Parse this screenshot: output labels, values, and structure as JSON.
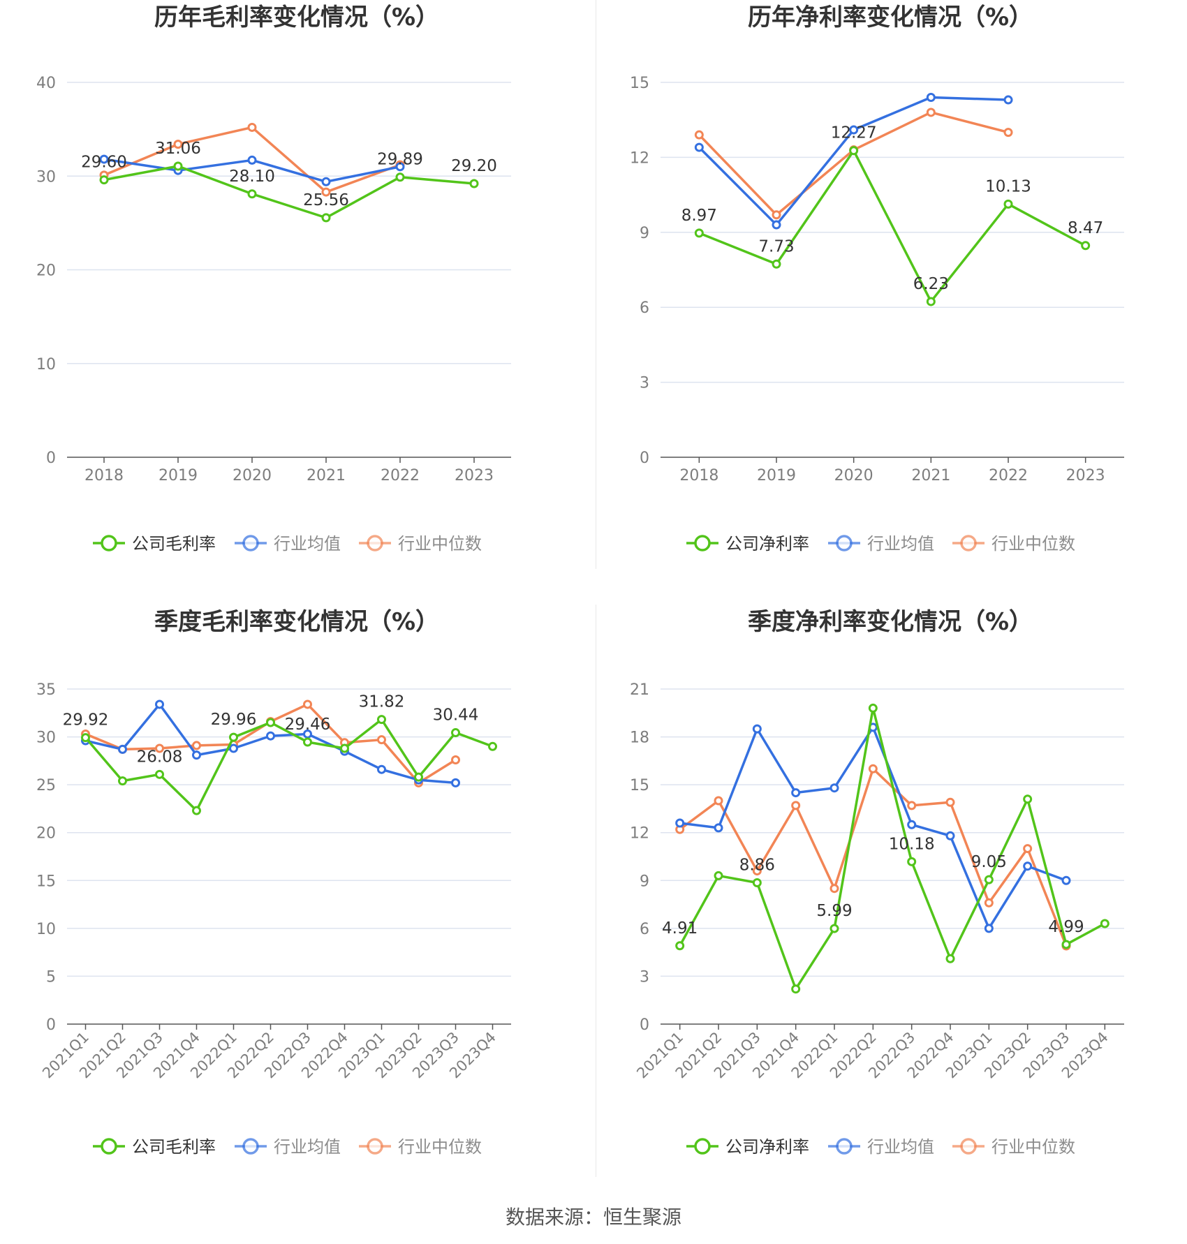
{
  "colors": {
    "company": "#52c41a",
    "avg": "#3470e0",
    "median": "#f28555",
    "grid": "#dde3ef",
    "axis": "#555555",
    "tick": "#7d7d7d"
  },
  "source": "数据来源：恒生聚源",
  "chart_data": [
    {
      "type": "line",
      "title": "历年毛利率变化情况（%）",
      "categories": [
        "2018",
        "2019",
        "2020",
        "2021",
        "2022",
        "2023"
      ],
      "ylim": [
        0,
        40
      ],
      "yticks": [
        0,
        10,
        20,
        30,
        40
      ],
      "legend_position": "bottom-center",
      "grid": true,
      "series": [
        {
          "name": "公司毛利率",
          "role": "company",
          "values": [
            29.6,
            31.06,
            28.1,
            25.56,
            29.89,
            29.2
          ],
          "labels": [
            "29.60",
            "31.06",
            "28.10",
            "25.56",
            "29.89",
            "29.20"
          ]
        },
        {
          "name": "行业均值",
          "role": "avg",
          "values": [
            31.8,
            30.6,
            31.7,
            29.4,
            31.0,
            null
          ]
        },
        {
          "name": "行业中位数",
          "role": "median",
          "values": [
            30.1,
            33.4,
            35.2,
            28.3,
            31.2,
            null
          ]
        }
      ]
    },
    {
      "type": "line",
      "title": "历年净利率变化情况（%）",
      "categories": [
        "2018",
        "2019",
        "2020",
        "2021",
        "2022",
        "2023"
      ],
      "ylim": [
        0,
        15
      ],
      "yticks": [
        0,
        3,
        6,
        9,
        12,
        15
      ],
      "legend_position": "bottom-center",
      "grid": true,
      "series": [
        {
          "name": "公司净利率",
          "role": "company",
          "values": [
            8.97,
            7.73,
            12.27,
            6.23,
            10.13,
            8.47
          ],
          "labels": [
            "8.97",
            "7.73",
            "12.27",
            "6.23",
            "10.13",
            "8.47"
          ]
        },
        {
          "name": "行业均值",
          "role": "avg",
          "values": [
            12.4,
            9.3,
            13.1,
            14.4,
            14.3,
            null
          ]
        },
        {
          "name": "行业中位数",
          "role": "median",
          "values": [
            12.9,
            9.7,
            12.3,
            13.8,
            13.0,
            null
          ]
        }
      ]
    },
    {
      "type": "line",
      "title": "季度毛利率变化情况（%）",
      "categories": [
        "2021Q1",
        "2021Q2",
        "2021Q3",
        "2021Q4",
        "2022Q1",
        "2022Q2",
        "2022Q3",
        "2022Q4",
        "2023Q1",
        "2023Q2",
        "2023Q3",
        "2023Q4"
      ],
      "ylim": [
        0,
        35
      ],
      "yticks": [
        0,
        5,
        10,
        15,
        20,
        25,
        30,
        35
      ],
      "legend_position": "bottom-center",
      "grid": true,
      "series": [
        {
          "name": "公司毛利率",
          "role": "company",
          "values": [
            29.92,
            25.4,
            26.08,
            22.3,
            29.96,
            31.5,
            29.46,
            28.8,
            31.82,
            25.8,
            30.44,
            29.0
          ],
          "labels": [
            "29.92",
            "",
            "26.08",
            "",
            "29.96",
            "",
            "29.46",
            "",
            "31.82",
            "",
            "30.44",
            ""
          ]
        },
        {
          "name": "行业均值",
          "role": "avg",
          "values": [
            29.6,
            28.7,
            33.4,
            28.1,
            28.8,
            30.1,
            30.3,
            28.5,
            26.6,
            25.5,
            25.2,
            null
          ]
        },
        {
          "name": "行业中位数",
          "role": "median",
          "values": [
            30.3,
            28.7,
            28.8,
            29.1,
            29.2,
            31.6,
            33.4,
            29.4,
            29.7,
            25.2,
            27.6,
            null
          ]
        }
      ]
    },
    {
      "type": "line",
      "title": "季度净利率变化情况（%）",
      "categories": [
        "2021Q1",
        "2021Q2",
        "2021Q3",
        "2021Q4",
        "2022Q1",
        "2022Q2",
        "2022Q3",
        "2022Q4",
        "2023Q1",
        "2023Q2",
        "2023Q3",
        "2023Q4"
      ],
      "ylim": [
        0,
        21
      ],
      "yticks": [
        0,
        3,
        6,
        9,
        12,
        15,
        18,
        21
      ],
      "legend_position": "bottom-center",
      "grid": true,
      "series": [
        {
          "name": "公司净利率",
          "role": "company",
          "values": [
            4.91,
            9.3,
            8.86,
            2.2,
            5.99,
            19.8,
            10.18,
            4.1,
            9.05,
            14.1,
            4.99,
            6.3
          ],
          "labels": [
            "4.91",
            "",
            "8.86",
            "",
            "5.99",
            "",
            "10.18",
            "",
            "9.05",
            "",
            "4.99",
            ""
          ]
        },
        {
          "name": "行业均值",
          "role": "avg",
          "values": [
            12.6,
            12.3,
            18.5,
            14.5,
            14.8,
            18.6,
            12.5,
            11.8,
            6.0,
            9.9,
            9.0,
            null
          ]
        },
        {
          "name": "行业中位数",
          "role": "median",
          "values": [
            12.2,
            14.0,
            9.6,
            13.7,
            8.5,
            16.0,
            13.7,
            13.9,
            7.6,
            11.0,
            4.9,
            null
          ]
        }
      ]
    }
  ]
}
